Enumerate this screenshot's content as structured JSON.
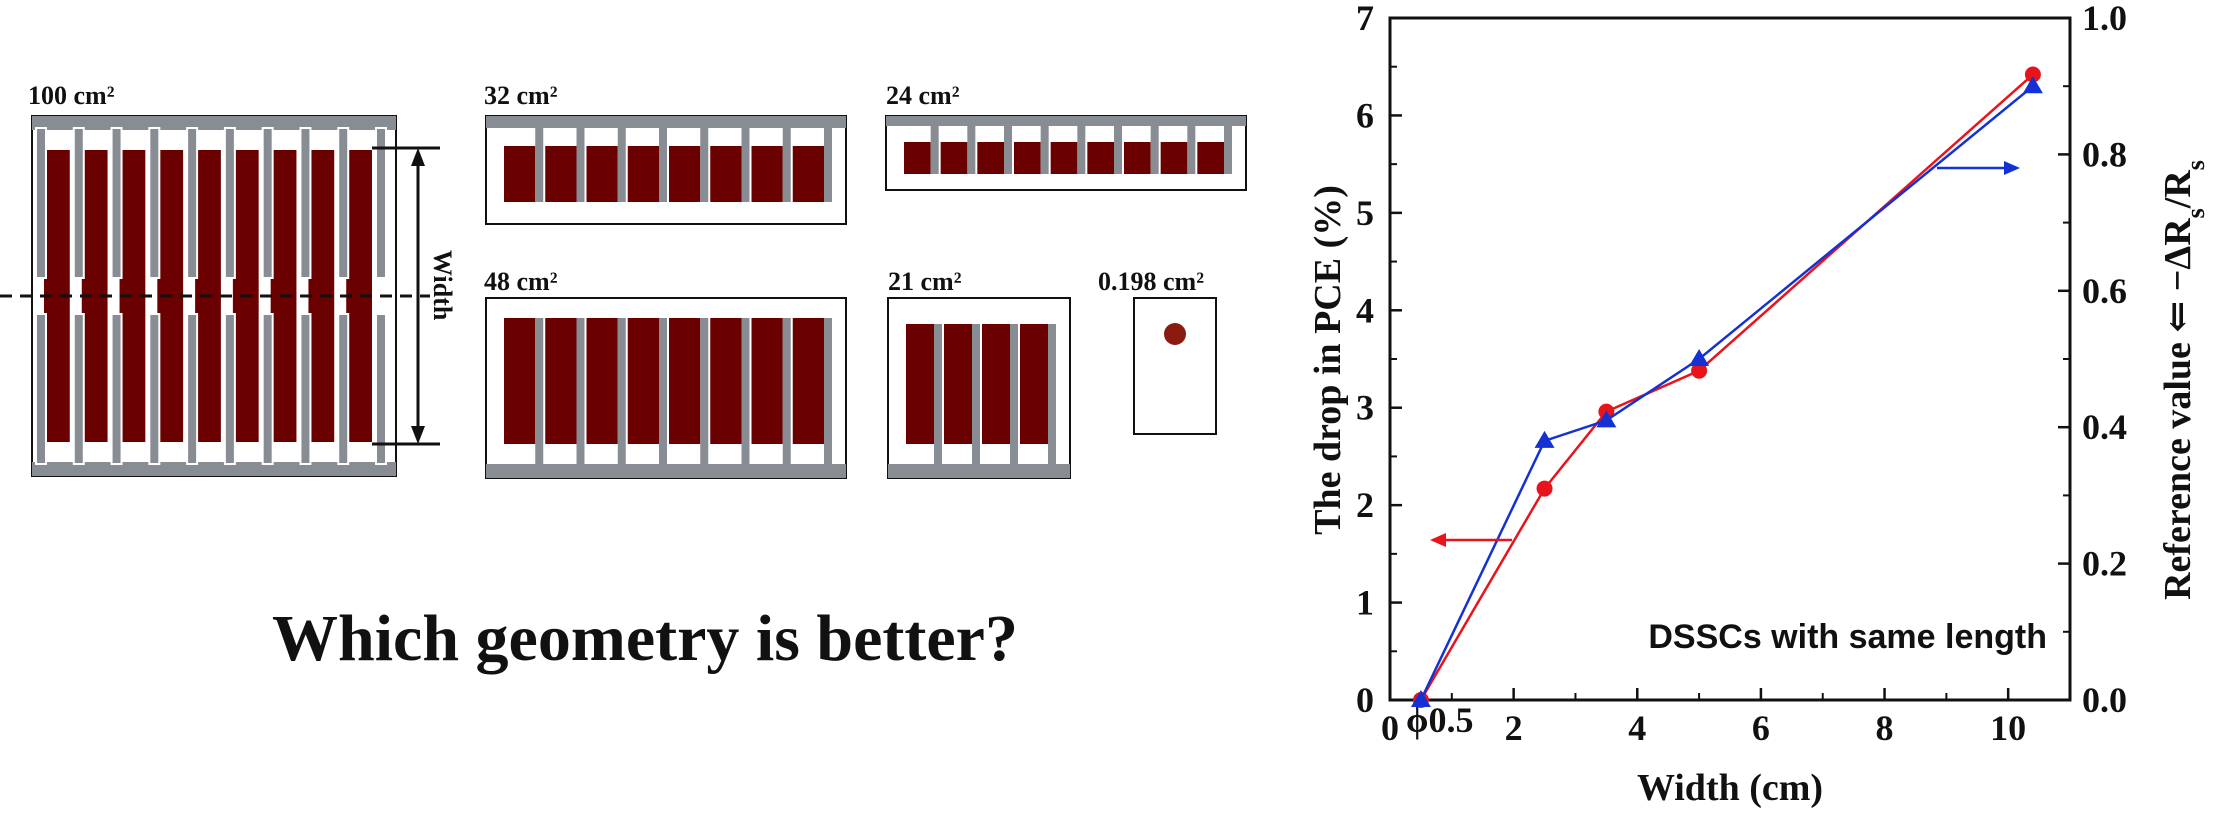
{
  "diagram": {
    "cells": [
      {
        "id": "cell-100",
        "area_label": "100 cm²",
        "finger_count": 9
      },
      {
        "id": "cell-32",
        "area_label": "32 cm²",
        "finger_count": 8
      },
      {
        "id": "cell-24",
        "area_label": "24 cm²",
        "finger_count": 9
      },
      {
        "id": "cell-48",
        "area_label": "48 cm²",
        "finger_count": 8
      },
      {
        "id": "cell-21",
        "area_label": "21 cm²",
        "finger_count": 4
      },
      {
        "id": "cell-0198",
        "area_label": "0.198 cm²",
        "finger_count": 0
      }
    ],
    "width_label": "Width",
    "question": "Which geometry is better?",
    "colors": {
      "active": "#6b0000",
      "grid": "#888c93",
      "dot": "#8b1a10"
    }
  },
  "chart_data": {
    "type": "line",
    "xlabel": "Width (cm)",
    "ylabel_left": "The drop in PCE (%)",
    "ylabel_right": "Reference value ⇐ −ΔR",
    "ylabel_right_sub": "s",
    "ylabel_right_tail": "/R",
    "ylabel_right_sub2": "s",
    "xlim": [
      0,
      11
    ],
    "ylim_left": [
      0,
      7
    ],
    "ylim_right": [
      0,
      1.0
    ],
    "x_ticks": [
      0,
      2,
      4,
      6,
      8,
      10
    ],
    "y_left_ticks": [
      0,
      1,
      2,
      3,
      4,
      5,
      6,
      7
    ],
    "y_right_ticks": [
      "0.0",
      "0.2",
      "0.4",
      "0.6",
      "0.8",
      "1.0"
    ],
    "x_tick_extra": "ϕ0.5",
    "annotation": "DSSCs with same length",
    "series": [
      {
        "axis": "left",
        "color": "#e8141b",
        "marker": "circle",
        "points": [
          [
            0.5,
            0
          ],
          [
            2.5,
            2.17
          ],
          [
            3.5,
            2.96
          ],
          [
            5.0,
            3.38
          ],
          [
            10.4,
            6.42
          ]
        ]
      },
      {
        "axis": "right",
        "color": "#1432d4",
        "marker": "triangle",
        "points": [
          [
            0.5,
            0
          ],
          [
            2.5,
            0.38
          ],
          [
            3.5,
            0.41
          ],
          [
            5.0,
            0.5
          ],
          [
            10.4,
            0.9
          ]
        ]
      }
    ],
    "arrows": [
      {
        "color": "#e8141b",
        "direction": "left"
      },
      {
        "color": "#1432d4",
        "direction": "right"
      }
    ]
  }
}
